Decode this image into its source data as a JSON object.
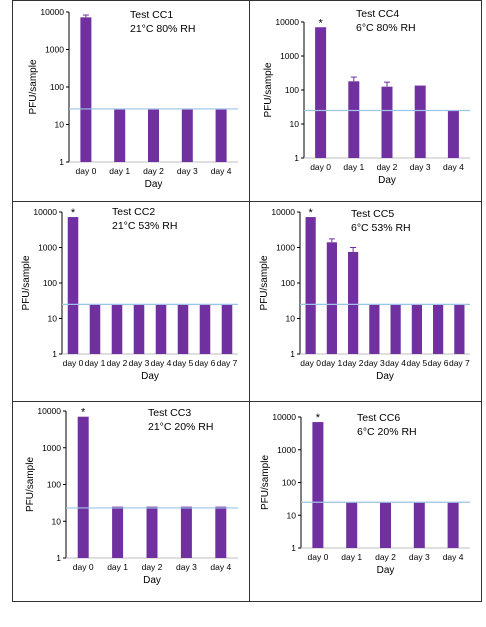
{
  "colors": {
    "bar": "#7030A0",
    "threshold": "#9DC3E6",
    "axis": "#000000",
    "text": "#000000",
    "error": "#7030A0"
  },
  "chart_data": [
    {
      "type": "bar",
      "title": "Test CC1",
      "subtitle": "21°C 80% RH",
      "xlabel": "Day",
      "ylabel": "PFU/sample",
      "scale": "log",
      "ylim": [
        1,
        10000
      ],
      "yticks": [
        "1",
        "10",
        "100",
        "1000",
        "10000"
      ],
      "categories": [
        "day 0",
        "day 1",
        "day 2",
        "day 3",
        "day 4"
      ],
      "values": [
        7200,
        25,
        25,
        25,
        25
      ],
      "error_upper": [
        8300,
        null,
        null,
        null,
        null
      ],
      "threshold": 26,
      "significance": [
        false,
        false,
        false,
        false,
        false
      ]
    },
    {
      "type": "bar",
      "title": "Test CC4",
      "subtitle": "6°C 80% RH",
      "xlabel": "Day",
      "ylabel": "PFU/sample",
      "scale": "log",
      "ylim": [
        1,
        10000
      ],
      "yticks": [
        "1",
        "10",
        "100",
        "1000",
        "10000"
      ],
      "categories": [
        "day 0",
        "day 1",
        "day 2",
        "day 3",
        "day 4"
      ],
      "values": [
        7000,
        180,
        125,
        135,
        25
      ],
      "error_upper": [
        null,
        240,
        170,
        null,
        null
      ],
      "threshold": 25,
      "significance": [
        true,
        false,
        false,
        false,
        false
      ]
    },
    {
      "type": "bar",
      "title": "Test CC2",
      "subtitle": "21°C 53% RH",
      "xlabel": "Day",
      "ylabel": "PFU/sample",
      "scale": "log",
      "ylim": [
        1,
        10000
      ],
      "yticks": [
        "1",
        "10",
        "100",
        "1000",
        "10000"
      ],
      "categories": [
        "day 0",
        "day 1",
        "day 2",
        "day 3",
        "day 4",
        "day 5",
        "day 6",
        "day 7"
      ],
      "values": [
        7200,
        25,
        25,
        25,
        25,
        25,
        25,
        25
      ],
      "error_upper": [
        null,
        null,
        null,
        null,
        null,
        null,
        null,
        null
      ],
      "threshold": 25,
      "significance": [
        true,
        false,
        false,
        false,
        false,
        false,
        false,
        false
      ]
    },
    {
      "type": "bar",
      "title": "Test CC5",
      "subtitle": "6°C 53% RH",
      "xlabel": "Day",
      "ylabel": "PFU/sample",
      "scale": "log",
      "ylim": [
        1,
        10000
      ],
      "yticks": [
        "1",
        "10",
        "100",
        "1000",
        "10000"
      ],
      "categories": [
        "day 0",
        "day 1",
        "day 2",
        "day 3",
        "day 4",
        "day 5",
        "day 6",
        "day 7"
      ],
      "values": [
        7200,
        1400,
        750,
        25,
        25,
        25,
        25,
        25
      ],
      "error_upper": [
        null,
        1750,
        1000,
        null,
        null,
        null,
        null,
        null
      ],
      "threshold": 25,
      "significance": [
        true,
        false,
        false,
        false,
        false,
        false,
        false,
        false
      ]
    },
    {
      "type": "bar",
      "title": "Test CC3",
      "subtitle": "21°C 20% RH",
      "xlabel": "Day",
      "ylabel": "PFU/sample",
      "scale": "log",
      "ylim": [
        1,
        10000
      ],
      "yticks": [
        "1",
        "10",
        "100",
        "1000",
        "10000"
      ],
      "categories": [
        "day 0",
        "day 1",
        "day 2",
        "day 3",
        "day 4"
      ],
      "values": [
        7000,
        25,
        25,
        25,
        25
      ],
      "error_upper": [
        null,
        null,
        null,
        null,
        null
      ],
      "threshold": 23,
      "significance": [
        true,
        false,
        false,
        false,
        false
      ]
    },
    {
      "type": "bar",
      "title": "Test CC6",
      "subtitle": "6°C 20% RH",
      "xlabel": "Day",
      "ylabel": "PFU/sample",
      "scale": "log",
      "ylim": [
        1,
        10000
      ],
      "yticks": [
        "1",
        "10",
        "100",
        "1000",
        "10000"
      ],
      "categories": [
        "day 0",
        "day 1",
        "day 2",
        "day 3",
        "day 4"
      ],
      "values": [
        7000,
        25,
        25,
        25,
        25
      ],
      "error_upper": [
        null,
        null,
        null,
        null,
        null
      ],
      "threshold": 25,
      "significance": [
        true,
        false,
        false,
        false,
        false
      ]
    }
  ]
}
